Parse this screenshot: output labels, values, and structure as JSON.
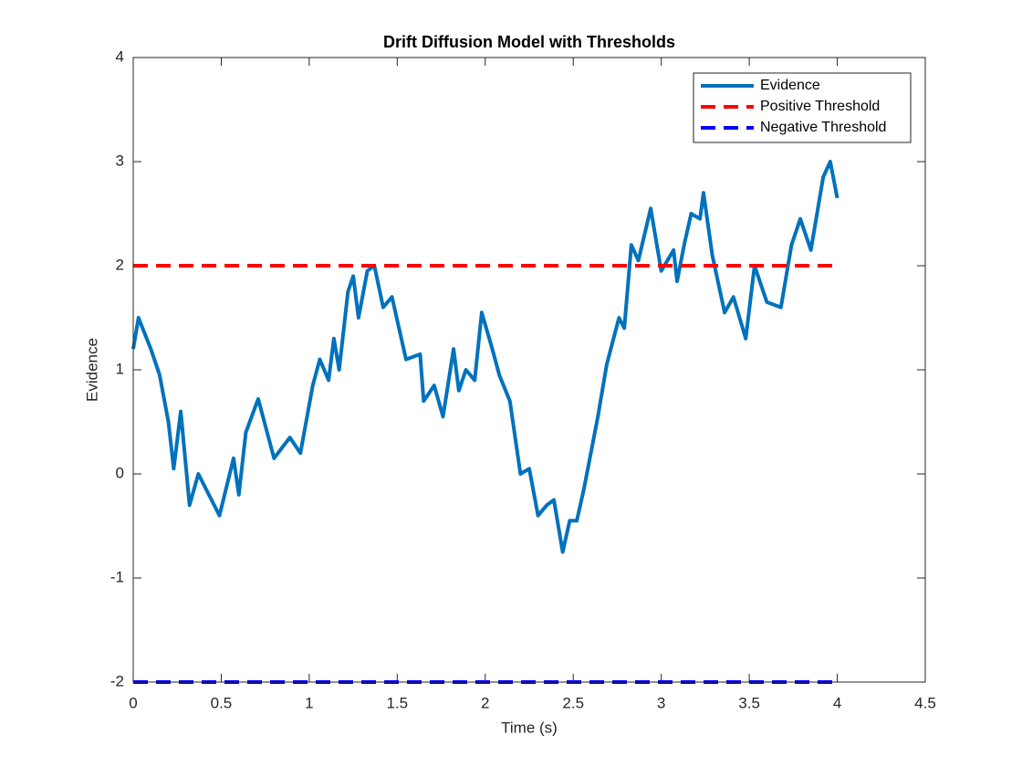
{
  "chart_data": {
    "type": "line",
    "title": "Drift Diffusion Model with Thresholds",
    "x_label": "Time (s)",
    "y_label": "Evidence",
    "xlim": [
      0,
      4.5
    ],
    "ylim": [
      -2,
      4
    ],
    "xticks": [
      0,
      0.5,
      1,
      1.5,
      2,
      2.5,
      3,
      3.5,
      4,
      4.5
    ],
    "yticks": [
      -2,
      -1,
      0,
      1,
      2,
      3,
      4
    ],
    "grid": false,
    "legend": "upper-right",
    "series": [
      {
        "name": "Evidence",
        "color": "#0072bd",
        "dash": "solid",
        "x": [
          0,
          0.03,
          0.1,
          0.15,
          0.2,
          0.21,
          0.23,
          0.27,
          0.32,
          0.37,
          0.49,
          0.57,
          0.6,
          0.64,
          0.71,
          0.8,
          0.89,
          0.95,
          1.02,
          1.06,
          1.11,
          1.14,
          1.17,
          1.22,
          1.25,
          1.28,
          1.33,
          1.37,
          1.42,
          1.47,
          1.55,
          1.63,
          1.65,
          1.71,
          1.76,
          1.82,
          1.85,
          1.89,
          1.94,
          1.98,
          2.04,
          2.08,
          2.14,
          2.2,
          2.25,
          2.3,
          2.35,
          2.39,
          2.44,
          2.48,
          2.52,
          2.56,
          2.64,
          2.69,
          2.76,
          2.79,
          2.83,
          2.87,
          2.94,
          3.0,
          3.07,
          3.09,
          3.13,
          3.17,
          3.22,
          3.24,
          3.29,
          3.36,
          3.41,
          3.48,
          3.53,
          3.6,
          3.68,
          3.74,
          3.79,
          3.85,
          3.92,
          3.96,
          4.0
        ],
        "values": [
          1.2,
          1.5,
          1.2,
          0.95,
          0.5,
          0.35,
          0.05,
          0.6,
          -0.3,
          0.0,
          -0.4,
          0.15,
          -0.2,
          0.4,
          0.72,
          0.15,
          0.35,
          0.2,
          0.85,
          1.1,
          0.9,
          1.3,
          1.0,
          1.75,
          1.9,
          1.5,
          1.95,
          2.0,
          1.6,
          1.7,
          1.1,
          1.15,
          0.7,
          0.85,
          0.55,
          1.2,
          0.8,
          1.0,
          0.9,
          1.55,
          1.2,
          0.95,
          0.7,
          0.0,
          0.05,
          -0.4,
          -0.3,
          -0.25,
          -0.75,
          -0.45,
          -0.45,
          -0.15,
          0.55,
          1.05,
          1.5,
          1.4,
          2.2,
          2.05,
          2.55,
          1.95,
          2.15,
          1.85,
          2.2,
          2.5,
          2.45,
          2.7,
          2.1,
          1.55,
          1.7,
          1.3,
          2.0,
          1.65,
          1.6,
          2.2,
          2.45,
          2.15,
          2.85,
          3.0,
          2.65
        ]
      },
      {
        "name": "Positive Threshold",
        "color": "#ff0000",
        "dash": "dashed",
        "x": [
          0,
          4
        ],
        "values": [
          2,
          2
        ]
      },
      {
        "name": "Negative Threshold",
        "color": "#0000ff",
        "dash": "dashed",
        "x": [
          0,
          4
        ],
        "values": [
          -2,
          -2
        ]
      }
    ]
  }
}
